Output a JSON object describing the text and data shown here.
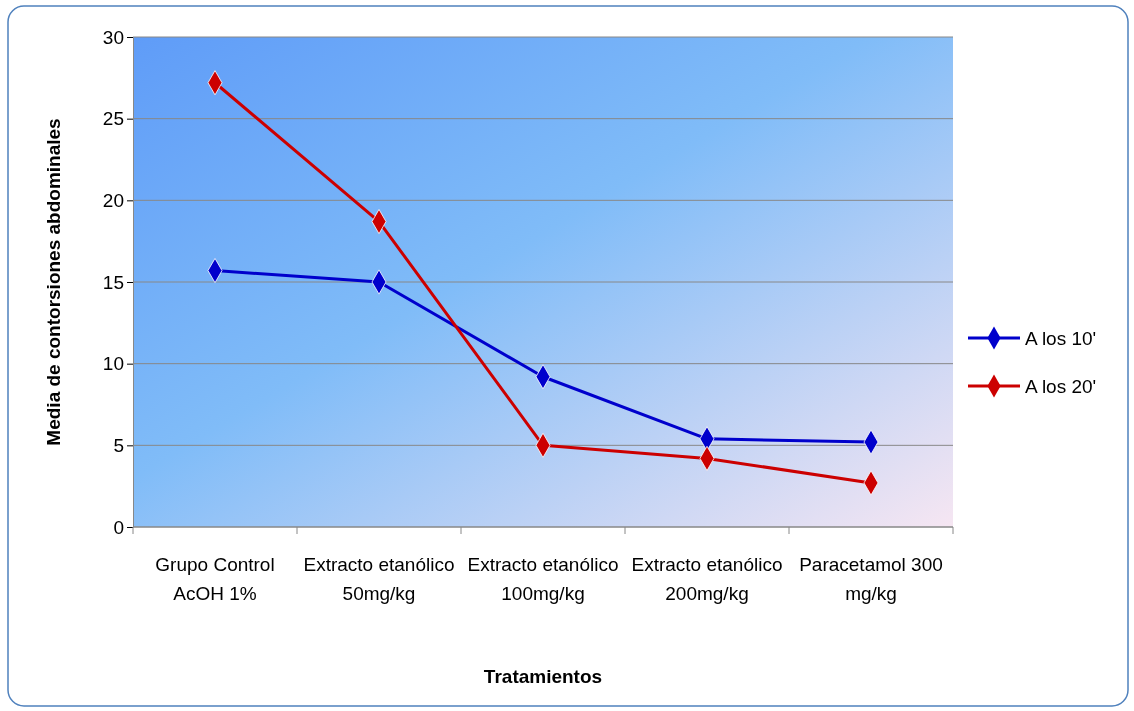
{
  "chart_data": {
    "type": "line",
    "xlabel": "Tratamientos",
    "ylabel": "Media de contorsiones abdominales",
    "categories": [
      "Grupo Control AcOH 1%",
      "Extracto etanólico 50mg/kg",
      "Extracto etanólico 100mg/kg",
      "Extracto etanólico 200mg/kg",
      "Paracetamol 300 mg/kg"
    ],
    "series": [
      {
        "name": "A los 10'",
        "color": "#0000cc",
        "values": [
          15.7,
          15.0,
          9.2,
          5.4,
          5.2
        ]
      },
      {
        "name": "A los 20'",
        "color": "#cc0000",
        "values": [
          27.2,
          18.7,
          5.0,
          4.2,
          2.7
        ]
      }
    ],
    "ylim": [
      0,
      30
    ],
    "yticks": [
      0,
      5,
      10,
      15,
      20,
      25,
      30
    ],
    "grid": "y",
    "legend": "right",
    "marker": "diamond",
    "line_style": "solid"
  }
}
